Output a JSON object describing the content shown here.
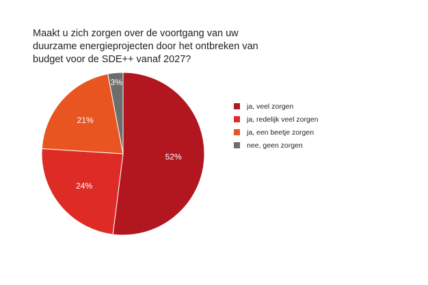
{
  "chart_data": {
    "type": "pie",
    "title": "Maakt u zich zorgen over de voortgang van uw duurzame energieprojecten door het ontbreken van budget voor de SDE++ vanaf 2027?",
    "slices": [
      {
        "label": "ja, veel zorgen",
        "value": 52,
        "display": "52%",
        "color": "#b2161f"
      },
      {
        "label": "ja, redelijk veel zorgen",
        "value": 24,
        "display": "24%",
        "color": "#df2b26"
      },
      {
        "label": "ja, een beetje zorgen",
        "value": 21,
        "display": "21%",
        "color": "#e85520"
      },
      {
        "label": "nee, geen zorgen",
        "value": 3,
        "display": "3%",
        "color": "#6d6d6d"
      }
    ],
    "legend_position": "right"
  }
}
